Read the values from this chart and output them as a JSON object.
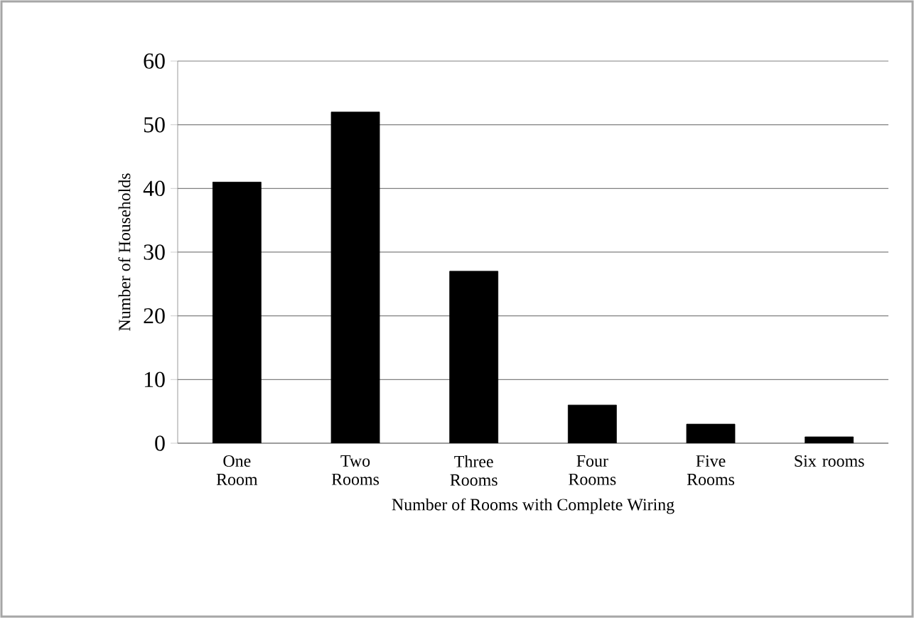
{
  "chart_data": {
    "type": "bar",
    "xlabel": "Number of Rooms with Complete Wiring",
    "ylabel": "Number of Households",
    "categories": [
      "One Room",
      "Two Rooms",
      "Three Rooms",
      "Four Rooms",
      "Five Rooms",
      "Six rooms"
    ],
    "values": [
      41,
      52,
      27,
      6,
      3,
      1
    ],
    "color": "#000000",
    "ylim": [
      0,
      60
    ],
    "yticks": [
      0,
      10,
      20,
      30,
      40,
      50,
      60
    ],
    "grid": "y"
  }
}
